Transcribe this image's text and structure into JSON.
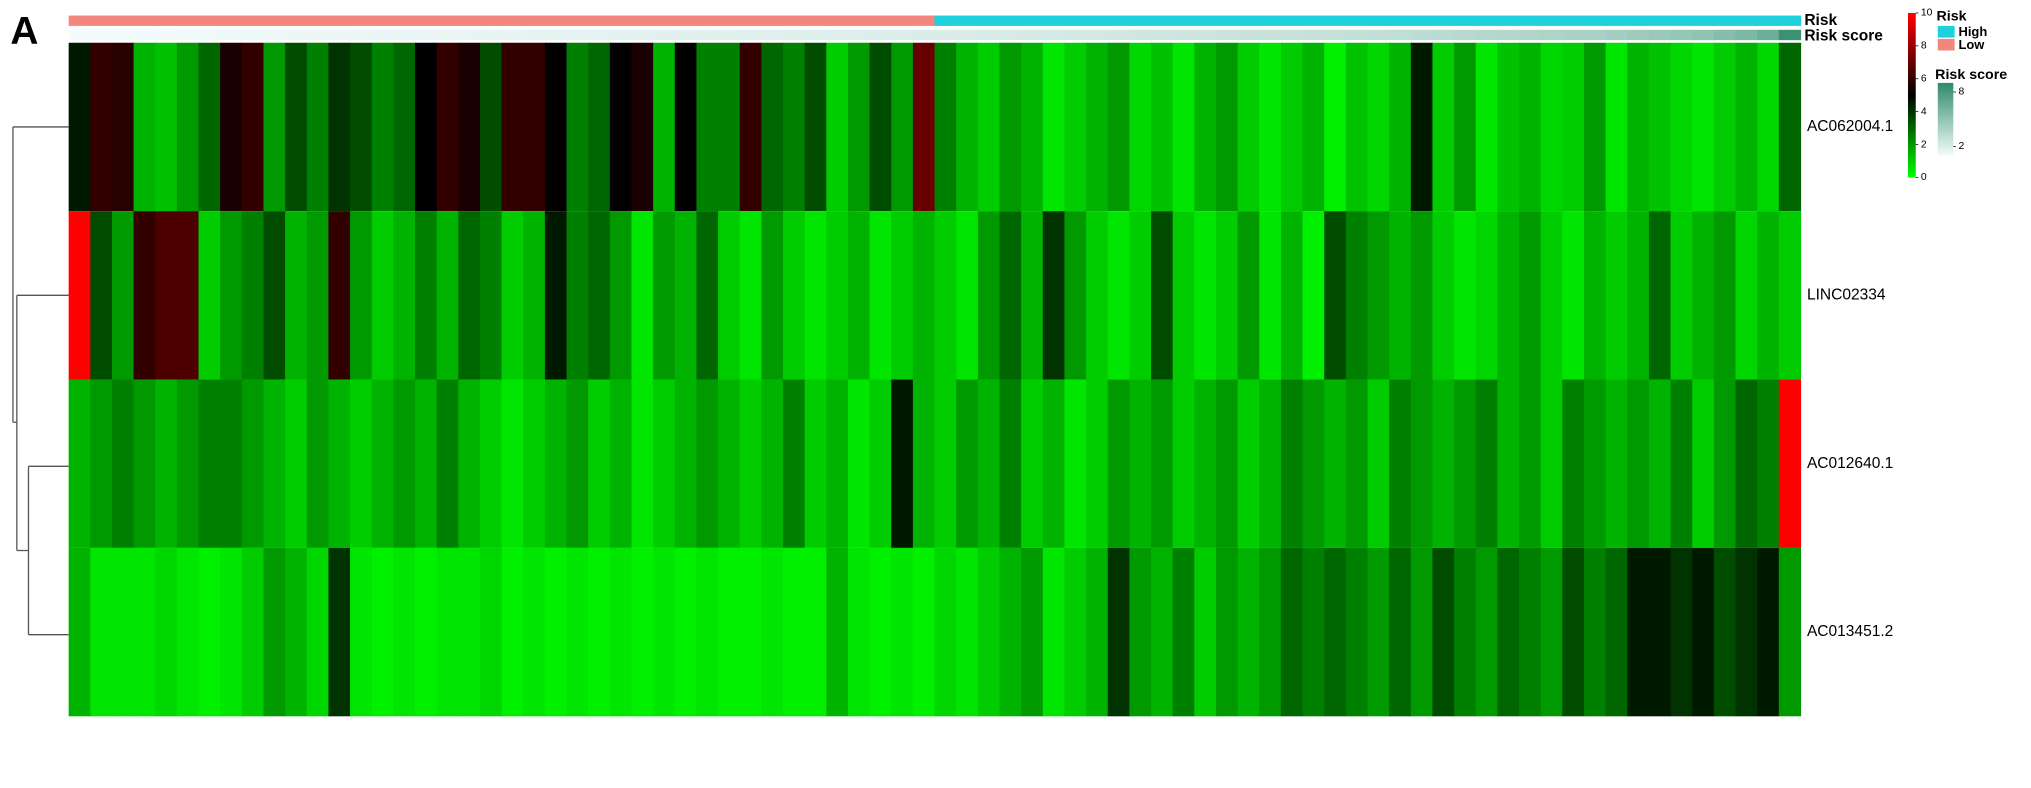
{
  "chart_data": {
    "type": "heatmap",
    "panel_label": "A",
    "rows": [
      "AC062004.1",
      "LINC02334",
      "AC012640.1",
      "AC013451.2"
    ],
    "values": [
      [
        4.5,
        6,
        5.8,
        1.5,
        1.2,
        2,
        3,
        5.5,
        6,
        2,
        3.5,
        2.5,
        4,
        3.5,
        2.5,
        3,
        5,
        6,
        5.5,
        3.5,
        6,
        6,
        5,
        2.5,
        3,
        5,
        5.5,
        1.5,
        5,
        2.5,
        2.5,
        6,
        3,
        2.5,
        3.5,
        1,
        2,
        3.5,
        2,
        7,
        2.5,
        1.5,
        1,
        2,
        1.5,
        0.5,
        1,
        1.5,
        2,
        0.8,
        1.2,
        0.5,
        1.5,
        2,
        1,
        0.5,
        1,
        1.5,
        0.3,
        1.2,
        0.8,
        1.5,
        4.5,
        1,
        2,
        0.5,
        1.2,
        1.5,
        0.8,
        1,
        2,
        0.5,
        1.5,
        1.2,
        0.8,
        0.5,
        1,
        1.5,
        0.8,
        3
      ],
      [
        10,
        3.5,
        2,
        6,
        6.5,
        6.5,
        1,
        2,
        2.5,
        3.5,
        1.5,
        2,
        6,
        2,
        1,
        1.5,
        2.5,
        1.5,
        3,
        2.5,
        1,
        1.5,
        4.5,
        2.5,
        3,
        2,
        0.5,
        2,
        1.5,
        3,
        1,
        0.5,
        2,
        1,
        0.5,
        1,
        1.5,
        0.5,
        1,
        1.5,
        1,
        0.5,
        2,
        3,
        1.5,
        4,
        2,
        1,
        0.5,
        1,
        3.5,
        1,
        0.5,
        1,
        2,
        0.5,
        1.5,
        0.3,
        3.5,
        2.5,
        2,
        1.5,
        2,
        1,
        0.5,
        0.8,
        1.5,
        2,
        1,
        0.5,
        1.5,
        1,
        1.5,
        3,
        1,
        1.5,
        2,
        0.8,
        1.5,
        1
      ],
      [
        1.5,
        2,
        2.5,
        2,
        1.5,
        2,
        2.5,
        2.5,
        2,
        1.5,
        1,
        2,
        1.5,
        1,
        1.5,
        2,
        1.5,
        2.5,
        1.5,
        1,
        0.5,
        1,
        1.5,
        2,
        1,
        1.5,
        0.5,
        1,
        1.5,
        2,
        1.5,
        1,
        1.5,
        2.5,
        1,
        1.5,
        0.5,
        1,
        4.5,
        1.5,
        1,
        2,
        1.5,
        2.5,
        1,
        1.5,
        0.5,
        1,
        2,
        1.5,
        2,
        1,
        1.5,
        2,
        1,
        1.5,
        2.5,
        2,
        1.5,
        2,
        1,
        2.5,
        2,
        1.5,
        2,
        2.5,
        1.5,
        2,
        1,
        2.5,
        2,
        1.5,
        2,
        1.5,
        2.5,
        1,
        2,
        3,
        2.5,
        10
      ],
      [
        1.5,
        0.5,
        0.5,
        0.5,
        0.8,
        0.5,
        0.3,
        0.5,
        1,
        2,
        1.5,
        0.8,
        4,
        0.5,
        0.3,
        0.5,
        0.3,
        0.5,
        0.5,
        0.8,
        0.3,
        0.5,
        0.3,
        0.5,
        0.3,
        0.5,
        0.3,
        0.5,
        0.3,
        0.5,
        0.3,
        0.3,
        0.5,
        0.3,
        0.3,
        1.5,
        0.5,
        0.3,
        0.5,
        0.3,
        0.8,
        0.5,
        1,
        1.5,
        2,
        0.5,
        1,
        1.5,
        4,
        2,
        1.5,
        2.5,
        1,
        2,
        1.5,
        2,
        3,
        2.5,
        3,
        2.5,
        2,
        3,
        2,
        3.5,
        2.5,
        2,
        3,
        2.5,
        2,
        3.5,
        2.5,
        3,
        4.5,
        4.5,
        4,
        4.5,
        3.5,
        4,
        4.5,
        2
      ]
    ],
    "zlim": [
      0,
      10
    ],
    "zticks": [
      0,
      2,
      4,
      6,
      8,
      10
    ],
    "colors": [
      "#00ff00",
      "#000000",
      "#ff0000"
    ],
    "risk": {
      "title": "Risk",
      "levels": [
        {
          "name": "High",
          "color": "#1fd0df"
        },
        {
          "name": "Low",
          "color": "#f4877d"
        }
      ],
      "values": [
        "Low",
        "Low",
        "Low",
        "Low",
        "Low",
        "Low",
        "Low",
        "Low",
        "Low",
        "Low",
        "Low",
        "Low",
        "Low",
        "Low",
        "Low",
        "Low",
        "Low",
        "Low",
        "Low",
        "Low",
        "Low",
        "Low",
        "Low",
        "Low",
        "Low",
        "Low",
        "Low",
        "Low",
        "Low",
        "Low",
        "Low",
        "Low",
        "Low",
        "Low",
        "Low",
        "Low",
        "Low",
        "Low",
        "Low",
        "Low",
        "High",
        "High",
        "High",
        "High",
        "High",
        "High",
        "High",
        "High",
        "High",
        "High",
        "High",
        "High",
        "High",
        "High",
        "High",
        "High",
        "High",
        "High",
        "High",
        "High",
        "High",
        "High",
        "High",
        "High",
        "High",
        "High",
        "High",
        "High",
        "High",
        "High",
        "High",
        "High",
        "High",
        "High",
        "High",
        "High",
        "High",
        "High",
        "High",
        "High"
      ]
    },
    "risk_score": {
      "title": "Risk score",
      "lim": [
        1,
        9
      ],
      "ticks": [
        2,
        8
      ],
      "colors": [
        "#f3fbfb",
        "#2e8b6a"
      ],
      "values": [
        1.0,
        1.03,
        1.05,
        1.08,
        1.1,
        1.13,
        1.15,
        1.18,
        1.2,
        1.23,
        1.25,
        1.28,
        1.3,
        1.33,
        1.35,
        1.38,
        1.4,
        1.43,
        1.45,
        1.48,
        1.5,
        1.53,
        1.55,
        1.58,
        1.6,
        1.63,
        1.65,
        1.68,
        1.7,
        1.73,
        1.75,
        1.78,
        1.8,
        1.83,
        1.85,
        1.88,
        1.9,
        1.93,
        1.95,
        1.98,
        2.0,
        2.05,
        2.1,
        2.15,
        2.2,
        2.25,
        2.3,
        2.35,
        2.4,
        2.45,
        2.5,
        2.55,
        2.6,
        2.65,
        2.7,
        2.75,
        2.8,
        2.85,
        2.9,
        2.95,
        3.0,
        3.1,
        3.2,
        3.3,
        3.4,
        3.5,
        3.6,
        3.7,
        3.8,
        3.9,
        4.0,
        4.2,
        4.4,
        4.6,
        4.8,
        5.0,
        5.4,
        5.8,
        6.5,
        8.5
      ]
    }
  }
}
